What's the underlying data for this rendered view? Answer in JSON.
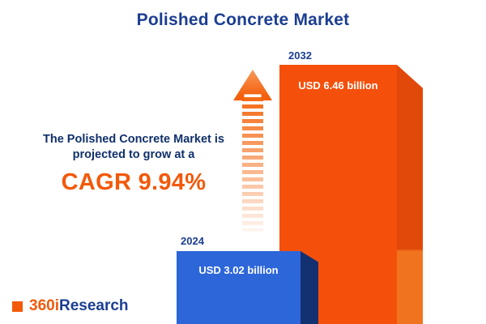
{
  "title": "Polished Concrete Market",
  "chart_data": {
    "type": "bar",
    "title": "Polished Concrete Market",
    "categories": [
      "2024",
      "2032"
    ],
    "values": [
      3.02,
      6.46
    ],
    "value_labels": [
      "USD 3.02 billion",
      "USD 6.46 billion"
    ],
    "unit": "USD billion",
    "growth_metric": "CAGR 9.94%",
    "legend_position": "none",
    "grid": false
  },
  "annotation": {
    "line1": "The Polished Concrete Market is",
    "line2": "projected to grow at a",
    "cagr": "CAGR 9.94%"
  },
  "logo": {
    "part1": "360i",
    "part2": "Research"
  },
  "colors": {
    "navy": "#1b3e91",
    "orange_accent": "#f2590a",
    "bar_blue": "#2d66d9",
    "bar_blue_side": "#133070",
    "bar_orange": "#f4500b",
    "bar_orange_side": "#e1490a",
    "background": "#ffffff"
  }
}
